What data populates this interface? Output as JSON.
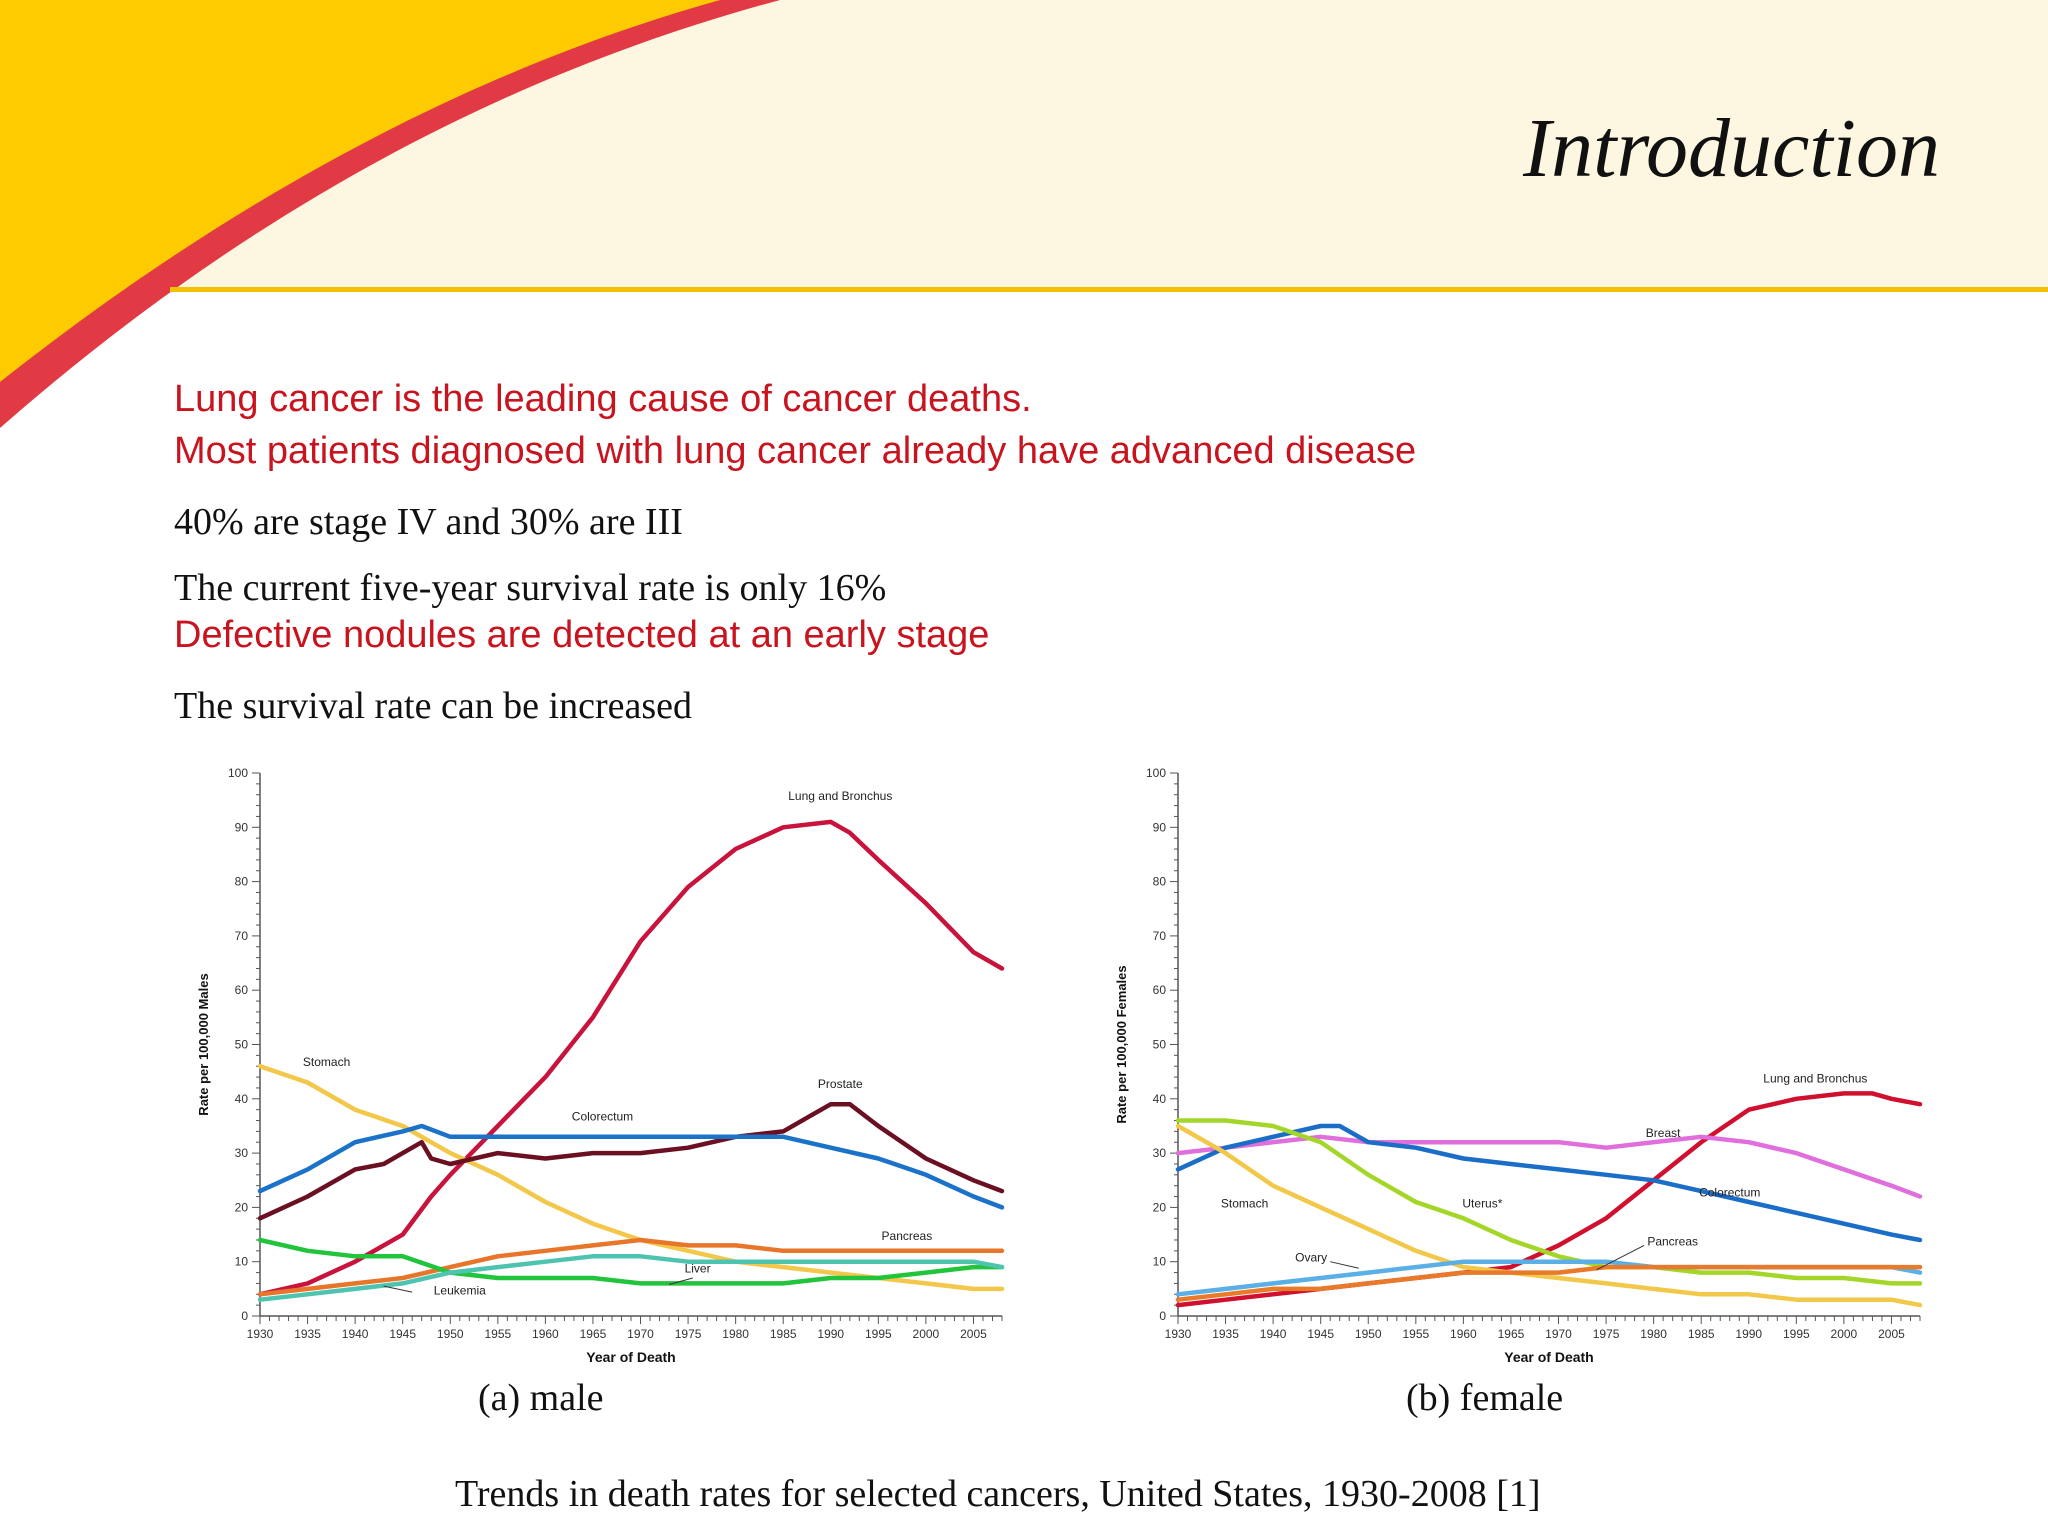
{
  "slide": {
    "title": "Introduction",
    "lines": [
      "Lung cancer is the leading cause of cancer deaths.",
      "Most patients diagnosed with lung cancer already have advanced disease",
      "40% are stage IV and 30% are III",
      "The current five-year survival rate is only 16%",
      "Defective nodules are detected at an early stage",
      "The survival rate can be increased"
    ],
    "caption_male": "(a) male",
    "caption_female": "(b) female",
    "figure_caption": "Trends in death rates for selected cancers, United States, 1930-2008 [1]"
  },
  "colors": {
    "banner": "#fdf6e0",
    "swoosh_yellow": "#fecb00",
    "swoosh_red": "#e23a45",
    "divider": "#f2c200"
  },
  "chart_data": [
    {
      "type": "line",
      "title": "(a) male",
      "xlabel": "Year of Death",
      "ylabel": "Rate per 100,000 Males",
      "xlim": [
        1930,
        2008
      ],
      "ylim": [
        0,
        100
      ],
      "xticks": [
        1930,
        1935,
        1940,
        1945,
        1950,
        1955,
        1960,
        1965,
        1970,
        1975,
        1980,
        1985,
        1990,
        1995,
        2000,
        2005
      ],
      "yticks": [
        0,
        10,
        20,
        30,
        40,
        50,
        60,
        70,
        80,
        90,
        100
      ],
      "series": [
        {
          "name": "Lung and Bronchus",
          "color": "#c8143c",
          "x": [
            1930,
            1935,
            1940,
            1945,
            1948,
            1950,
            1955,
            1960,
            1965,
            1970,
            1975,
            1980,
            1985,
            1990,
            1992,
            1995,
            2000,
            2005,
            2008
          ],
          "y": [
            4,
            6,
            10,
            15,
            22,
            26,
            35,
            44,
            55,
            69,
            79,
            86,
            90,
            91,
            89,
            84,
            76,
            67,
            64
          ]
        },
        {
          "name": "Stomach",
          "color": "#f2c74a",
          "x": [
            1930,
            1935,
            1940,
            1945,
            1950,
            1955,
            1960,
            1965,
            1970,
            1975,
            1980,
            1985,
            1990,
            1995,
            2000,
            2005,
            2008
          ],
          "y": [
            46,
            43,
            38,
            35,
            30,
            26,
            21,
            17,
            14,
            12,
            10,
            9,
            8,
            7,
            6,
            5,
            5
          ]
        },
        {
          "name": "Prostate",
          "color": "#6b0f22",
          "x": [
            1930,
            1935,
            1940,
            1943,
            1945,
            1947,
            1948,
            1950,
            1955,
            1960,
            1965,
            1970,
            1975,
            1980,
            1985,
            1988,
            1990,
            1992,
            1995,
            2000,
            2005,
            2008
          ],
          "y": [
            18,
            22,
            27,
            28,
            30,
            32,
            29,
            28,
            30,
            29,
            30,
            30,
            31,
            33,
            34,
            37,
            39,
            39,
            35,
            29,
            25,
            23
          ]
        },
        {
          "name": "Colorectum",
          "color": "#1b73c9",
          "x": [
            1930,
            1935,
            1940,
            1945,
            1947,
            1950,
            1955,
            1960,
            1965,
            1970,
            1975,
            1980,
            1985,
            1990,
            1995,
            2000,
            2005,
            2008
          ],
          "y": [
            23,
            27,
            32,
            34,
            35,
            33,
            33,
            33,
            33,
            33,
            33,
            33,
            33,
            31,
            29,
            26,
            22,
            20
          ]
        },
        {
          "name": "Pancreas",
          "color": "#e8762a",
          "x": [
            1930,
            1935,
            1940,
            1945,
            1950,
            1955,
            1960,
            1965,
            1970,
            1975,
            1980,
            1985,
            1990,
            1995,
            2000,
            2005,
            2008
          ],
          "y": [
            4,
            5,
            6,
            7,
            9,
            11,
            12,
            13,
            14,
            13,
            13,
            12,
            12,
            12,
            12,
            12,
            12
          ]
        },
        {
          "name": "Liver",
          "color": "#22c43c",
          "x": [
            1930,
            1935,
            1940,
            1945,
            1950,
            1955,
            1960,
            1965,
            1970,
            1975,
            1980,
            1985,
            1990,
            1995,
            2000,
            2005,
            2008
          ],
          "y": [
            14,
            12,
            11,
            11,
            8,
            7,
            7,
            7,
            6,
            6,
            6,
            6,
            7,
            7,
            8,
            9,
            9
          ]
        },
        {
          "name": "Leukemia",
          "color": "#4ec4b0",
          "x": [
            1930,
            1935,
            1940,
            1945,
            1950,
            1955,
            1960,
            1965,
            1970,
            1975,
            1980,
            1985,
            1990,
            1995,
            2000,
            2005,
            2008
          ],
          "y": [
            3,
            4,
            5,
            6,
            8,
            9,
            10,
            11,
            11,
            10,
            10,
            10,
            10,
            10,
            10,
            10,
            9
          ]
        }
      ],
      "annotations": [
        "Lung and Bronchus",
        "Stomach",
        "Prostate",
        "Colorectum",
        "Pancreas",
        "Liver",
        "Leukemia"
      ]
    },
    {
      "type": "line",
      "title": "(b) female",
      "xlabel": "Year of Death",
      "ylabel": "Rate per 100,000 Females",
      "xlim": [
        1930,
        2008
      ],
      "ylim": [
        0,
        100
      ],
      "xticks": [
        1930,
        1935,
        1940,
        1945,
        1950,
        1955,
        1960,
        1965,
        1970,
        1975,
        1980,
        1985,
        1990,
        1995,
        2000,
        2005
      ],
      "yticks": [
        0,
        10,
        20,
        30,
        40,
        50,
        60,
        70,
        80,
        90,
        100
      ],
      "series": [
        {
          "name": "Lung and Bronchus",
          "color": "#d0102e",
          "x": [
            1930,
            1935,
            1940,
            1945,
            1950,
            1955,
            1960,
            1965,
            1970,
            1975,
            1980,
            1985,
            1990,
            1995,
            2000,
            2003,
            2005,
            2008
          ],
          "y": [
            2,
            3,
            4,
            5,
            6,
            7,
            8,
            9,
            13,
            18,
            25,
            32,
            38,
            40,
            41,
            41,
            40,
            39
          ]
        },
        {
          "name": "Breast",
          "color": "#e06edc",
          "x": [
            1930,
            1935,
            1940,
            1945,
            1950,
            1955,
            1960,
            1965,
            1970,
            1975,
            1980,
            1985,
            1990,
            1995,
            2000,
            2005,
            2008
          ],
          "y": [
            30,
            31,
            32,
            33,
            32,
            32,
            32,
            32,
            32,
            31,
            32,
            33,
            32,
            30,
            27,
            24,
            22
          ]
        },
        {
          "name": "Colorectum",
          "color": "#1b6ec8",
          "x": [
            1930,
            1935,
            1940,
            1945,
            1947,
            1950,
            1955,
            1960,
            1965,
            1970,
            1975,
            1980,
            1985,
            1990,
            1995,
            2000,
            2005,
            2008
          ],
          "y": [
            27,
            31,
            33,
            35,
            35,
            32,
            31,
            29,
            28,
            27,
            26,
            25,
            23,
            21,
            19,
            17,
            15,
            14
          ]
        },
        {
          "name": "Uterus*",
          "color": "#a4d62a",
          "x": [
            1930,
            1935,
            1940,
            1945,
            1950,
            1955,
            1960,
            1965,
            1970,
            1975,
            1980,
            1985,
            1990,
            1995,
            2000,
            2005,
            2008
          ],
          "y": [
            36,
            36,
            35,
            32,
            26,
            21,
            18,
            14,
            11,
            9,
            9,
            8,
            8,
            7,
            7,
            6,
            6
          ]
        },
        {
          "name": "Stomach",
          "color": "#f2c84a",
          "x": [
            1930,
            1935,
            1940,
            1945,
            1950,
            1955,
            1960,
            1965,
            1970,
            1975,
            1980,
            1985,
            1990,
            1995,
            2000,
            2005,
            2008
          ],
          "y": [
            35,
            30,
            24,
            20,
            16,
            12,
            9,
            8,
            7,
            6,
            5,
            4,
            4,
            3,
            3,
            3,
            2
          ]
        },
        {
          "name": "Ovary",
          "color": "#5ab0e6",
          "x": [
            1930,
            1935,
            1940,
            1945,
            1950,
            1955,
            1960,
            1965,
            1970,
            1975,
            1980,
            1985,
            1990,
            1995,
            2000,
            2005,
            2008
          ],
          "y": [
            4,
            5,
            6,
            7,
            8,
            9,
            10,
            10,
            10,
            10,
            9,
            9,
            9,
            9,
            9,
            9,
            8
          ]
        },
        {
          "name": "Pancreas",
          "color": "#e87a2a",
          "x": [
            1930,
            1935,
            1940,
            1945,
            1950,
            1955,
            1960,
            1965,
            1970,
            1975,
            1980,
            1985,
            1990,
            1995,
            2000,
            2005,
            2008
          ],
          "y": [
            3,
            4,
            5,
            5,
            6,
            7,
            8,
            8,
            8,
            9,
            9,
            9,
            9,
            9,
            9,
            9,
            9
          ]
        }
      ],
      "annotations": [
        "Lung and Bronchus",
        "Breast",
        "Colorectum",
        "Uterus*",
        "Stomach",
        "Ovary",
        "Pancreas"
      ]
    }
  ]
}
